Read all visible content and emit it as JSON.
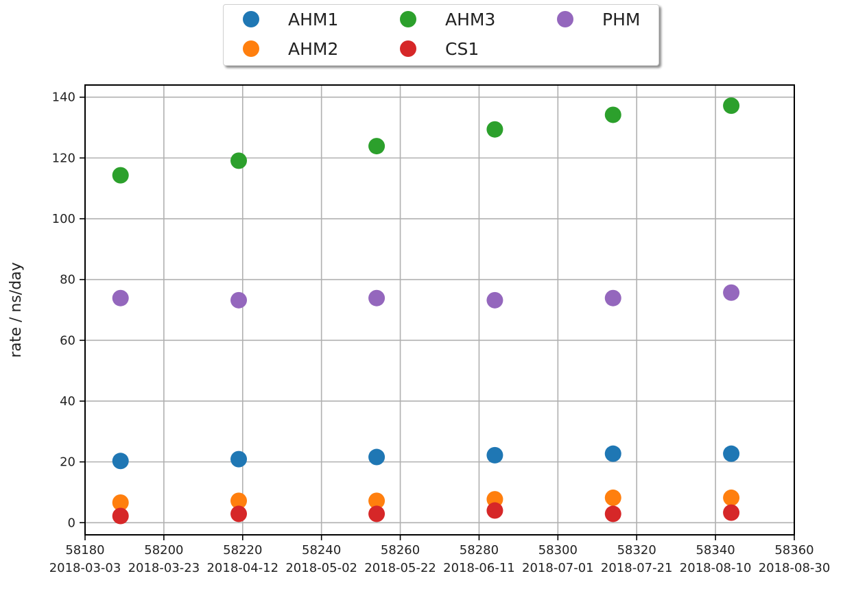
{
  "chart_data": {
    "type": "scatter",
    "title": "",
    "xlabel": "",
    "ylabel": "rate / ns/day",
    "xlim": [
      58180,
      58360
    ],
    "ylim": [
      -4,
      144
    ],
    "grid": true,
    "legend_position": "top-center",
    "x_ticks": [
      58180,
      58200,
      58220,
      58240,
      58260,
      58280,
      58300,
      58320,
      58340,
      58360
    ],
    "x_tick_labels_top": [
      "58180",
      "58200",
      "58220",
      "58240",
      "58260",
      "58280",
      "58300",
      "58320",
      "58340",
      "58360"
    ],
    "x_tick_labels_bottom": [
      "2018-03-03",
      "2018-03-23",
      "2018-04-12",
      "2018-05-02",
      "2018-05-22",
      "2018-06-11",
      "2018-07-01",
      "2018-07-21",
      "2018-08-10",
      "2018-08-30"
    ],
    "y_ticks": [
      0,
      20,
      40,
      60,
      80,
      100,
      120,
      140
    ],
    "y_tick_labels": [
      "0",
      "20",
      "40",
      "60",
      "80",
      "100",
      "120",
      "140"
    ],
    "x": [
      58189,
      58219,
      58254,
      58284,
      58314,
      58344
    ],
    "series": [
      {
        "name": "AHM1",
        "color": "#1f77b4",
        "values": [
          20.3,
          20.9,
          21.6,
          22.2,
          22.7,
          22.7
        ]
      },
      {
        "name": "AHM2",
        "color": "#ff7f0e",
        "values": [
          6.6,
          7.2,
          7.2,
          7.7,
          8.2,
          8.2
        ]
      },
      {
        "name": "AHM3",
        "color": "#2ca02c",
        "values": [
          114.3,
          119.1,
          123.9,
          129.4,
          134.2,
          137.2
        ]
      },
      {
        "name": "CS1",
        "color": "#d62728",
        "values": [
          2.2,
          2.9,
          2.9,
          4.0,
          2.9,
          3.3
        ]
      },
      {
        "name": "PHM",
        "color": "#9467bd",
        "values": [
          73.9,
          73.2,
          73.9,
          73.2,
          73.9,
          75.7
        ]
      }
    ]
  }
}
